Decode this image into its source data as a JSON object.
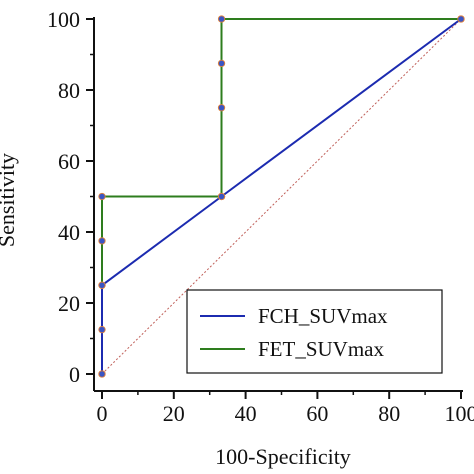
{
  "chart_data": {
    "type": "line",
    "xlabel": "100-Specificity",
    "ylabel": "Sensitivity",
    "xlim": [
      0,
      100
    ],
    "ylim": [
      0,
      100
    ],
    "x_ticks": [
      "0",
      "20",
      "40",
      "60",
      "80",
      "100"
    ],
    "y_ticks": [
      "0",
      "20",
      "40",
      "60",
      "80",
      "100"
    ],
    "legend_position": "bottom-right",
    "series": [
      {
        "name": "FCH_SUVmax",
        "color": "#1c2bb0",
        "points": [
          [
            0,
            0
          ],
          [
            0,
            25
          ],
          [
            33.3,
            50
          ],
          [
            100,
            100
          ]
        ]
      },
      {
        "name": "FET_SUVmax",
        "color": "#2e7d1e",
        "points": [
          [
            0,
            0
          ],
          [
            0,
            12.5
          ],
          [
            0,
            25
          ],
          [
            0,
            37.5
          ],
          [
            0,
            50
          ],
          [
            33.3,
            50
          ],
          [
            33.3,
            75
          ],
          [
            33.3,
            87.5
          ],
          [
            33.3,
            100
          ],
          [
            100,
            100
          ]
        ]
      }
    ],
    "reference_line": {
      "points": [
        [
          0,
          0
        ],
        [
          100,
          100
        ]
      ],
      "color": "#c0605a"
    },
    "marker_color": "#3a55c4",
    "marker_outline": "#e0803a"
  }
}
